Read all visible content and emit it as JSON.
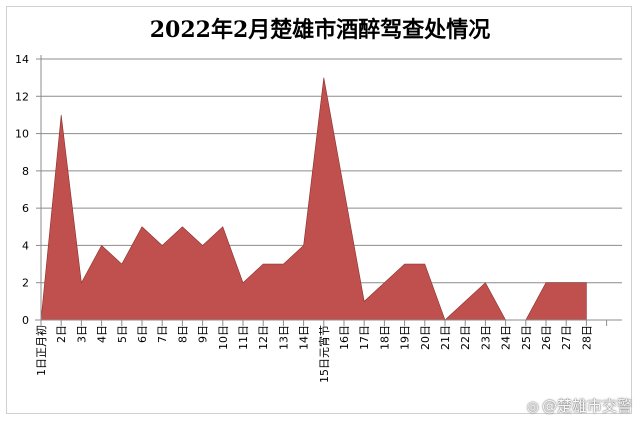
{
  "chart_data": {
    "type": "area",
    "title": "2022年2月楚雄市酒醉驾查处情况",
    "categories": [
      "1日正月初",
      "2日",
      "3日",
      "4日",
      "5日",
      "6日",
      "7日",
      "8日",
      "9日",
      "10日",
      "11日",
      "12日",
      "13日",
      "14日",
      "15日元宵节",
      "16日",
      "17日",
      "18日",
      "19日",
      "20日",
      "21日",
      "22日",
      "23日",
      "24日",
      "25日",
      "26日",
      "27日",
      "28日"
    ],
    "values": [
      0,
      11,
      2,
      4,
      3,
      5,
      4,
      5,
      4,
      5,
      2,
      3,
      3,
      4,
      13,
      7,
      1,
      2,
      3,
      3,
      0,
      1,
      2,
      0,
      0,
      2,
      2,
      2
    ],
    "ylim": [
      0,
      14
    ],
    "yticks": [
      0,
      2,
      4,
      6,
      8,
      10,
      12,
      14
    ],
    "grid": true,
    "fill_color": "#c0504d"
  },
  "watermark": {
    "icon": "weibo-icon",
    "text": "@楚雄市交警"
  }
}
